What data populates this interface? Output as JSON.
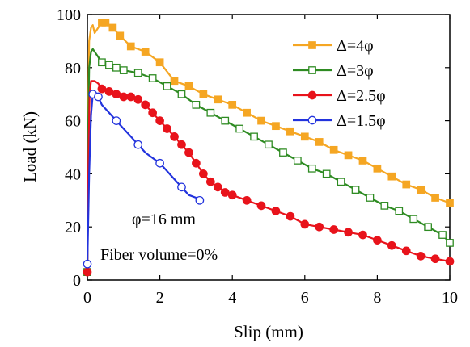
{
  "chart_data": {
    "type": "line",
    "title": "",
    "xlabel": "Slip (mm)",
    "ylabel": "Load (kN)",
    "xlim": [
      0,
      10
    ],
    "ylim": [
      0,
      100
    ],
    "xticks": [
      "0",
      "2",
      "4",
      "6",
      "8",
      "10"
    ],
    "yticks": [
      "0",
      "20",
      "40",
      "60",
      "80",
      "100"
    ],
    "grid": false,
    "legend_position": "top-right",
    "annotations": [
      "φ=16 mm",
      "Fiber volume=0%"
    ],
    "series": [
      {
        "name": "Δ=4φ",
        "color": "#f5a623",
        "marker": "filled-square",
        "x": [
          0,
          0.02,
          0.05,
          0.1,
          0.15,
          0.2,
          0.3,
          0.4,
          0.5,
          0.7,
          0.9,
          1.2,
          1.6,
          2.0,
          2.4,
          2.8,
          3.2,
          3.6,
          4.0,
          4.4,
          4.8,
          5.2,
          5.6,
          6.0,
          6.4,
          6.8,
          7.2,
          7.6,
          8.0,
          8.4,
          8.8,
          9.2,
          9.6,
          10.0
        ],
        "y": [
          3,
          65,
          90,
          95,
          96,
          93,
          95,
          97,
          97,
          95,
          92,
          88,
          86,
          82,
          75,
          73,
          70,
          68,
          66,
          63,
          60,
          58,
          56,
          54,
          52,
          49,
          47,
          45,
          42,
          39,
          36,
          34,
          31,
          29
        ]
      },
      {
        "name": "Δ=3φ",
        "color": "#2e8b22",
        "marker": "open-square",
        "x": [
          0,
          0.02,
          0.05,
          0.1,
          0.15,
          0.2,
          0.3,
          0.4,
          0.6,
          0.8,
          1.0,
          1.4,
          1.8,
          2.2,
          2.6,
          3.0,
          3.4,
          3.8,
          4.2,
          4.6,
          5.0,
          5.4,
          5.8,
          6.2,
          6.6,
          7.0,
          7.4,
          7.8,
          8.2,
          8.6,
          9.0,
          9.4,
          9.8,
          10.0
        ],
        "y": [
          3,
          55,
          80,
          86,
          87,
          86,
          84,
          82,
          81,
          80,
          79,
          78,
          76,
          73,
          70,
          66,
          63,
          60,
          57,
          54,
          51,
          48,
          45,
          42,
          40,
          37,
          34,
          31,
          28,
          26,
          23,
          20,
          17,
          14
        ]
      },
      {
        "name": "Δ=2.5φ",
        "color": "#e8131b",
        "marker": "filled-circle",
        "x": [
          0,
          0.03,
          0.06,
          0.1,
          0.15,
          0.2,
          0.3,
          0.4,
          0.6,
          0.8,
          1.0,
          1.2,
          1.4,
          1.6,
          1.8,
          2.0,
          2.2,
          2.4,
          2.6,
          2.8,
          3.0,
          3.2,
          3.4,
          3.6,
          3.8,
          4.0,
          4.4,
          4.8,
          5.2,
          5.6,
          6.0,
          6.4,
          6.8,
          7.2,
          7.6,
          8.0,
          8.4,
          8.8,
          9.2,
          9.6,
          10.0
        ],
        "y": [
          3,
          45,
          70,
          75,
          75,
          75,
          74,
          72,
          71,
          70,
          69,
          69,
          68,
          66,
          63,
          60,
          57,
          54,
          51,
          48,
          44,
          40,
          37,
          35,
          33,
          32,
          30,
          28,
          26,
          24,
          21,
          20,
          19,
          18,
          17,
          15,
          13,
          11,
          9,
          8,
          7
        ]
      },
      {
        "name": "Δ=1.5φ",
        "color": "#2233dd",
        "marker": "open-circle",
        "x": [
          0,
          0.05,
          0.1,
          0.15,
          0.2,
          0.25,
          0.3,
          0.4,
          0.6,
          0.8,
          1.0,
          1.2,
          1.4,
          1.6,
          1.8,
          2.0,
          2.2,
          2.4,
          2.6,
          2.8,
          3.0,
          3.1
        ],
        "y": [
          6,
          40,
          62,
          70,
          71,
          70,
          69,
          66,
          63,
          60,
          57,
          54,
          51,
          48,
          46,
          44,
          41,
          38,
          35,
          32,
          31,
          30
        ]
      }
    ]
  }
}
